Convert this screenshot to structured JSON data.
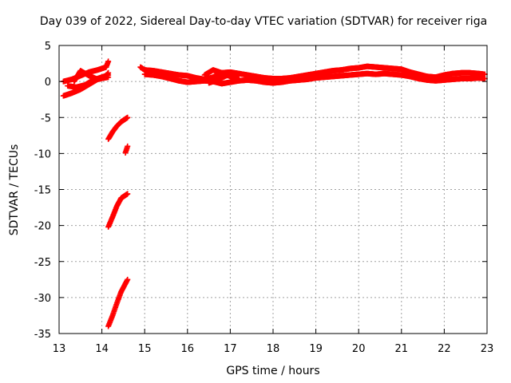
{
  "chart_data": {
    "type": "scatter",
    "title": "Day 039 of 2022, Sidereal Day-to-day VTEC variation (SDTVAR) for receiver riga",
    "xlabel": "GPS time / hours",
    "ylabel": "SDTVAR / TECUs",
    "xlim": [
      13,
      23
    ],
    "ylim": [
      -35,
      5
    ],
    "xticks": [
      13,
      14,
      15,
      16,
      17,
      18,
      19,
      20,
      21,
      22,
      23
    ],
    "yticks": [
      5,
      0,
      -5,
      -10,
      -15,
      -20,
      -25,
      -30,
      -35
    ],
    "grid": true,
    "marker": "+",
    "color": "#ff0000",
    "series": [
      {
        "name": "SDTVAR",
        "segments": [
          {
            "x": [
              13.1,
              13.3,
              13.5,
              13.7,
              13.9,
              14.1,
              14.15
            ],
            "y": [
              0.0,
              0.3,
              0.8,
              1.3,
              1.6,
              2.0,
              2.8
            ]
          },
          {
            "x": [
              13.1,
              13.3,
              13.5,
              13.7,
              13.9,
              14.1,
              14.15
            ],
            "y": [
              -2.0,
              -1.6,
              -1.1,
              -0.4,
              0.3,
              0.8,
              1.2
            ]
          },
          {
            "x": [
              13.2,
              13.4,
              13.6,
              13.8,
              14.0,
              14.15
            ],
            "y": [
              -0.6,
              -0.8,
              -0.5,
              0.2,
              0.6,
              0.9
            ]
          },
          {
            "x": [
              13.35,
              13.5,
              13.7,
              13.9,
              14.05,
              14.15
            ],
            "y": [
              0.0,
              1.5,
              0.8,
              0.3,
              0.5,
              0.6
            ]
          },
          {
            "x": [
              14.15,
              14.25,
              14.35,
              14.45,
              14.6
            ],
            "y": [
              -8.0,
              -7.0,
              -6.2,
              -5.6,
              -5.0
            ]
          },
          {
            "x": [
              14.55,
              14.6
            ],
            "y": [
              -9.9,
              -9.0
            ]
          },
          {
            "x": [
              14.15,
              14.25,
              14.35,
              14.45,
              14.6
            ],
            "y": [
              -20.2,
              -18.8,
              -17.3,
              -16.2,
              -15.6
            ]
          },
          {
            "x": [
              14.15,
              14.25,
              14.35,
              14.45,
              14.6
            ],
            "y": [
              -34.0,
              -32.5,
              -30.8,
              -29.2,
              -27.5
            ]
          },
          {
            "x": [
              14.9,
              15.0,
              15.2,
              15.4,
              15.6,
              15.8,
              16.0,
              16.2,
              16.4,
              16.6,
              16.8,
              17.0,
              17.2,
              17.4,
              17.6,
              17.8,
              18.0,
              18.2,
              18.4,
              18.6,
              18.8,
              19.0,
              19.2,
              19.4,
              19.6,
              19.8,
              20.0,
              20.2,
              20.4,
              20.6,
              20.8,
              21.0,
              21.2,
              21.4,
              21.6,
              21.8,
              22.0,
              22.2,
              22.4,
              22.6,
              22.8,
              22.95
            ],
            "y": [
              2.0,
              1.6,
              1.5,
              1.3,
              1.1,
              0.9,
              0.8,
              0.5,
              0.3,
              0.6,
              1.2,
              1.3,
              1.1,
              0.9,
              0.7,
              0.5,
              0.4,
              0.4,
              0.5,
              0.7,
              0.9,
              1.1,
              1.3,
              1.5,
              1.6,
              1.8,
              1.9,
              2.1,
              2.0,
              1.9,
              1.8,
              1.7,
              1.3,
              1.0,
              0.7,
              0.6,
              0.9,
              1.1,
              1.2,
              1.2,
              1.1,
              1.0
            ]
          },
          {
            "x": [
              15.0,
              15.2,
              15.4,
              15.6,
              15.8,
              16.0,
              16.2,
              16.4,
              16.6,
              16.8,
              17.0,
              17.2,
              17.4,
              17.6,
              17.8,
              18.0,
              18.2,
              18.4,
              18.6,
              18.8,
              19.0,
              19.2,
              19.4,
              19.6,
              19.8,
              20.0,
              20.2,
              20.4,
              20.6,
              20.8,
              21.0,
              21.2,
              21.4,
              21.6,
              21.8,
              22.0,
              22.2,
              22.4,
              22.6,
              22.8,
              22.95
            ],
            "y": [
              1.0,
              0.9,
              0.7,
              0.4,
              0.1,
              -0.1,
              0.0,
              0.1,
              0.0,
              -0.3,
              -0.1,
              0.1,
              0.2,
              0.1,
              -0.1,
              -0.2,
              -0.1,
              0.1,
              0.2,
              0.3,
              0.5,
              0.6,
              0.7,
              0.8,
              0.9,
              1.0,
              1.1,
              1.0,
              1.1,
              1.0,
              0.9,
              0.7,
              0.4,
              0.2,
              0.1,
              0.2,
              0.3,
              0.4,
              0.4,
              0.5,
              0.4
            ]
          },
          {
            "x": [
              16.4,
              16.6,
              16.8,
              17.0,
              17.2
            ],
            "y": [
              0.9,
              1.6,
              1.2,
              0.7,
              0.4
            ]
          },
          {
            "x": [
              16.5,
              16.7,
              16.9,
              17.1
            ],
            "y": [
              -0.2,
              0.2,
              0.8,
              1.1
            ]
          }
        ]
      }
    ]
  }
}
